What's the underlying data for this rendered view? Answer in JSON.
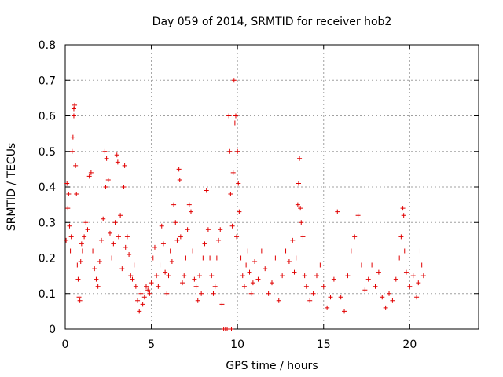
{
  "chart_data": {
    "type": "scatter",
    "title": "Day 059 of 2014, SRMTID for receiver hob2",
    "xlabel": "GPS time / hours",
    "ylabel": "SRMTID / TECUs",
    "xlim": [
      0,
      24
    ],
    "ylim": [
      0,
      0.8
    ],
    "xticks": [
      0,
      5,
      10,
      15,
      20
    ],
    "yticks": [
      0,
      0.1,
      0.2,
      0.3,
      0.4,
      0.5,
      0.6,
      0.7,
      0.8
    ],
    "marker": "+",
    "color": "#e00000",
    "grid": true,
    "series": [
      {
        "name": "SRMTID",
        "points": [
          [
            0.05,
            0.25
          ],
          [
            0.1,
            0.41
          ],
          [
            0.15,
            0.34
          ],
          [
            0.2,
            0.38
          ],
          [
            0.25,
            0.29
          ],
          [
            0.3,
            0.22
          ],
          [
            0.35,
            0.26
          ],
          [
            0.4,
            0.5
          ],
          [
            0.45,
            0.54
          ],
          [
            0.5,
            0.62
          ],
          [
            0.5,
            0.6
          ],
          [
            0.55,
            0.63
          ],
          [
            0.6,
            0.46
          ],
          [
            0.65,
            0.38
          ],
          [
            0.7,
            0.18
          ],
          [
            0.75,
            0.14
          ],
          [
            0.8,
            0.09
          ],
          [
            0.85,
            0.08
          ],
          [
            0.9,
            0.19
          ],
          [
            0.95,
            0.24
          ],
          [
            1.0,
            0.22
          ],
          [
            1.1,
            0.26
          ],
          [
            1.2,
            0.3
          ],
          [
            1.3,
            0.28
          ],
          [
            1.4,
            0.43
          ],
          [
            1.5,
            0.44
          ],
          [
            1.6,
            0.22
          ],
          [
            1.7,
            0.17
          ],
          [
            1.8,
            0.14
          ],
          [
            1.9,
            0.12
          ],
          [
            2.0,
            0.19
          ],
          [
            2.1,
            0.25
          ],
          [
            2.2,
            0.31
          ],
          [
            2.3,
            0.5
          ],
          [
            2.35,
            0.4
          ],
          [
            2.4,
            0.48
          ],
          [
            2.5,
            0.42
          ],
          [
            2.6,
            0.27
          ],
          [
            2.7,
            0.2
          ],
          [
            2.8,
            0.24
          ],
          [
            2.9,
            0.3
          ],
          [
            3.0,
            0.49
          ],
          [
            3.05,
            0.47
          ],
          [
            3.1,
            0.26
          ],
          [
            3.2,
            0.32
          ],
          [
            3.3,
            0.17
          ],
          [
            3.4,
            0.4
          ],
          [
            3.45,
            0.46
          ],
          [
            3.5,
            0.23
          ],
          [
            3.6,
            0.26
          ],
          [
            3.7,
            0.21
          ],
          [
            3.8,
            0.15
          ],
          [
            3.9,
            0.14
          ],
          [
            4.0,
            0.18
          ],
          [
            4.1,
            0.12
          ],
          [
            4.2,
            0.08
          ],
          [
            4.3,
            0.05
          ],
          [
            4.4,
            0.1
          ],
          [
            4.5,
            0.07
          ],
          [
            4.6,
            0.09
          ],
          [
            4.7,
            0.12
          ],
          [
            4.8,
            0.11
          ],
          [
            4.9,
            0.1
          ],
          [
            5.0,
            0.13
          ],
          [
            5.1,
            0.2
          ],
          [
            5.2,
            0.23
          ],
          [
            5.3,
            0.15
          ],
          [
            5.4,
            0.12
          ],
          [
            5.5,
            0.18
          ],
          [
            5.6,
            0.29
          ],
          [
            5.7,
            0.24
          ],
          [
            5.8,
            0.16
          ],
          [
            5.9,
            0.1
          ],
          [
            6.0,
            0.15
          ],
          [
            6.1,
            0.22
          ],
          [
            6.2,
            0.19
          ],
          [
            6.3,
            0.35
          ],
          [
            6.4,
            0.3
          ],
          [
            6.5,
            0.25
          ],
          [
            6.6,
            0.45
          ],
          [
            6.65,
            0.42
          ],
          [
            6.7,
            0.26
          ],
          [
            6.8,
            0.13
          ],
          [
            6.9,
            0.15
          ],
          [
            7.0,
            0.2
          ],
          [
            7.1,
            0.28
          ],
          [
            7.2,
            0.35
          ],
          [
            7.3,
            0.33
          ],
          [
            7.4,
            0.22
          ],
          [
            7.5,
            0.14
          ],
          [
            7.6,
            0.12
          ],
          [
            7.7,
            0.08
          ],
          [
            7.8,
            0.15
          ],
          [
            7.9,
            0.1
          ],
          [
            8.0,
            0.2
          ],
          [
            8.1,
            0.24
          ],
          [
            8.2,
            0.39
          ],
          [
            8.3,
            0.28
          ],
          [
            8.4,
            0.2
          ],
          [
            8.5,
            0.15
          ],
          [
            8.6,
            0.1
          ],
          [
            8.7,
            0.12
          ],
          [
            8.8,
            0.2
          ],
          [
            8.9,
            0.25
          ],
          [
            9.0,
            0.28
          ],
          [
            9.1,
            0.07
          ],
          [
            9.2,
            0.0
          ],
          [
            9.3,
            0.0
          ],
          [
            9.4,
            0.0
          ],
          [
            9.5,
            0.6
          ],
          [
            9.55,
            0.5
          ],
          [
            9.6,
            0.38
          ],
          [
            9.65,
            0.0
          ],
          [
            9.7,
            0.29
          ],
          [
            9.75,
            0.44
          ],
          [
            9.8,
            0.7
          ],
          [
            9.85,
            0.58
          ],
          [
            9.9,
            0.6
          ],
          [
            9.95,
            0.26
          ],
          [
            10.0,
            0.5
          ],
          [
            10.05,
            0.41
          ],
          [
            10.1,
            0.33
          ],
          [
            10.2,
            0.2
          ],
          [
            10.3,
            0.15
          ],
          [
            10.4,
            0.12
          ],
          [
            10.5,
            0.18
          ],
          [
            10.6,
            0.22
          ],
          [
            10.7,
            0.16
          ],
          [
            10.8,
            0.1
          ],
          [
            10.9,
            0.13
          ],
          [
            11.0,
            0.19
          ],
          [
            11.2,
            0.14
          ],
          [
            11.4,
            0.22
          ],
          [
            11.6,
            0.17
          ],
          [
            11.8,
            0.1
          ],
          [
            12.0,
            0.13
          ],
          [
            12.2,
            0.2
          ],
          [
            12.4,
            0.08
          ],
          [
            12.6,
            0.15
          ],
          [
            12.8,
            0.22
          ],
          [
            13.0,
            0.19
          ],
          [
            13.2,
            0.25
          ],
          [
            13.3,
            0.16
          ],
          [
            13.4,
            0.2
          ],
          [
            13.5,
            0.35
          ],
          [
            13.55,
            0.41
          ],
          [
            13.6,
            0.48
          ],
          [
            13.65,
            0.34
          ],
          [
            13.7,
            0.3
          ],
          [
            13.8,
            0.26
          ],
          [
            13.9,
            0.15
          ],
          [
            14.0,
            0.12
          ],
          [
            14.2,
            0.08
          ],
          [
            14.4,
            0.1
          ],
          [
            14.6,
            0.15
          ],
          [
            14.8,
            0.18
          ],
          [
            15.0,
            0.12
          ],
          [
            15.2,
            0.06
          ],
          [
            15.4,
            0.09
          ],
          [
            15.6,
            0.14
          ],
          [
            15.8,
            0.33
          ],
          [
            16.0,
            0.09
          ],
          [
            16.2,
            0.05
          ],
          [
            16.4,
            0.15
          ],
          [
            16.6,
            0.22
          ],
          [
            16.8,
            0.26
          ],
          [
            17.0,
            0.32
          ],
          [
            17.2,
            0.18
          ],
          [
            17.4,
            0.11
          ],
          [
            17.6,
            0.14
          ],
          [
            17.8,
            0.18
          ],
          [
            18.0,
            0.12
          ],
          [
            18.2,
            0.16
          ],
          [
            18.4,
            0.09
          ],
          [
            18.6,
            0.06
          ],
          [
            18.8,
            0.1
          ],
          [
            19.0,
            0.08
          ],
          [
            19.2,
            0.14
          ],
          [
            19.4,
            0.2
          ],
          [
            19.5,
            0.26
          ],
          [
            19.6,
            0.34
          ],
          [
            19.65,
            0.32
          ],
          [
            19.7,
            0.22
          ],
          [
            19.8,
            0.16
          ],
          [
            20.0,
            0.12
          ],
          [
            20.2,
            0.15
          ],
          [
            20.4,
            0.09
          ],
          [
            20.5,
            0.13
          ],
          [
            20.6,
            0.22
          ],
          [
            20.7,
            0.18
          ],
          [
            20.8,
            0.15
          ]
        ]
      }
    ]
  }
}
